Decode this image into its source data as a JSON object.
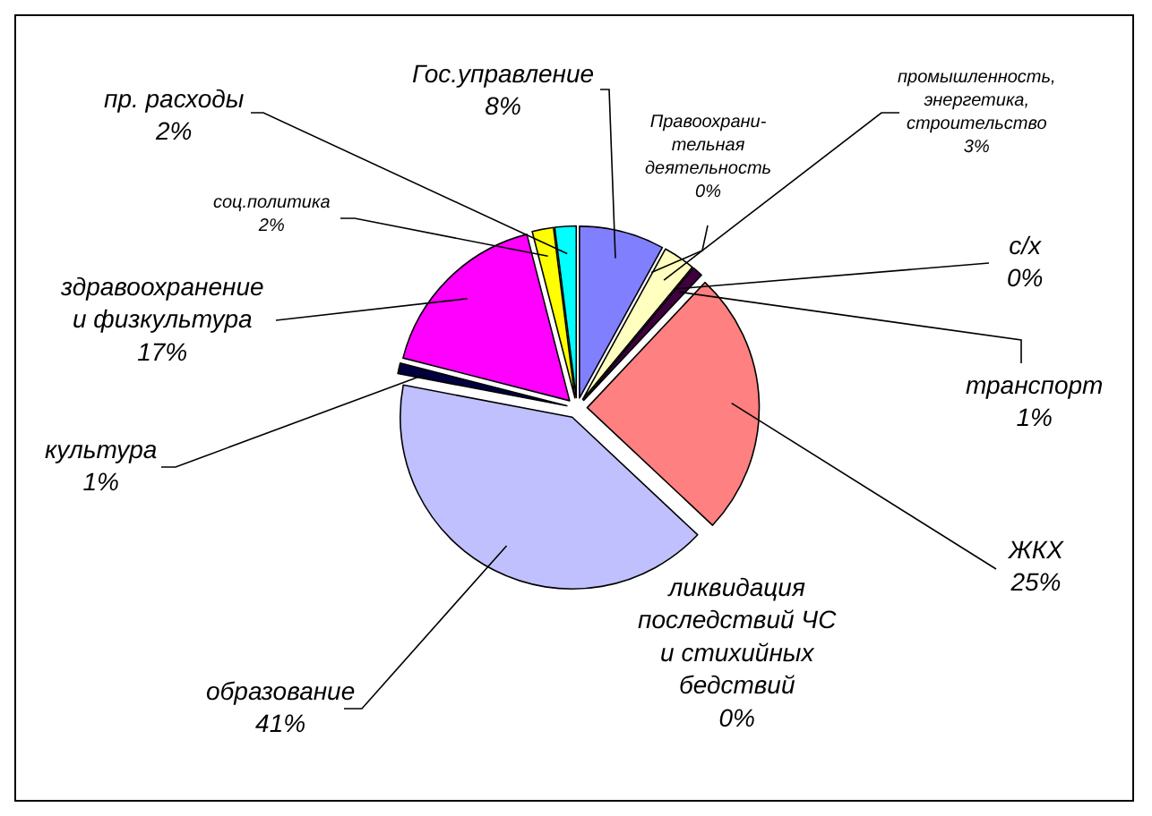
{
  "chart_data": {
    "type": "pie",
    "categories": [
      "Гос.управление",
      "Правоохрани-\nтельная\nдеятельность",
      "промышленность,\nэнергетика,\nстроительство",
      "с/х",
      "транспорт",
      "ЖКХ",
      "ликвидация\nпоследствий ЧС\nи стихийных\nбедствий",
      "образование",
      "культура",
      "здравоохранение\nи физкультура",
      "соц.политика",
      "пр. расходы"
    ],
    "values": [
      8,
      0,
      3,
      0,
      1,
      25,
      0,
      41,
      1,
      17,
      2,
      2
    ],
    "value_labels": [
      "8%",
      "0%",
      "3%",
      "0%",
      "1%",
      "25%",
      "0%",
      "41%",
      "1%",
      "17%",
      "2%",
      "2%"
    ],
    "colors": [
      "#8080ff",
      "#993366",
      "#ffffc0",
      "#ccffff",
      "#400040",
      "#ff8080",
      "#004060",
      "#c0c0ff",
      "#000040",
      "#ff00ff",
      "#ffff00",
      "#00ffff"
    ]
  }
}
